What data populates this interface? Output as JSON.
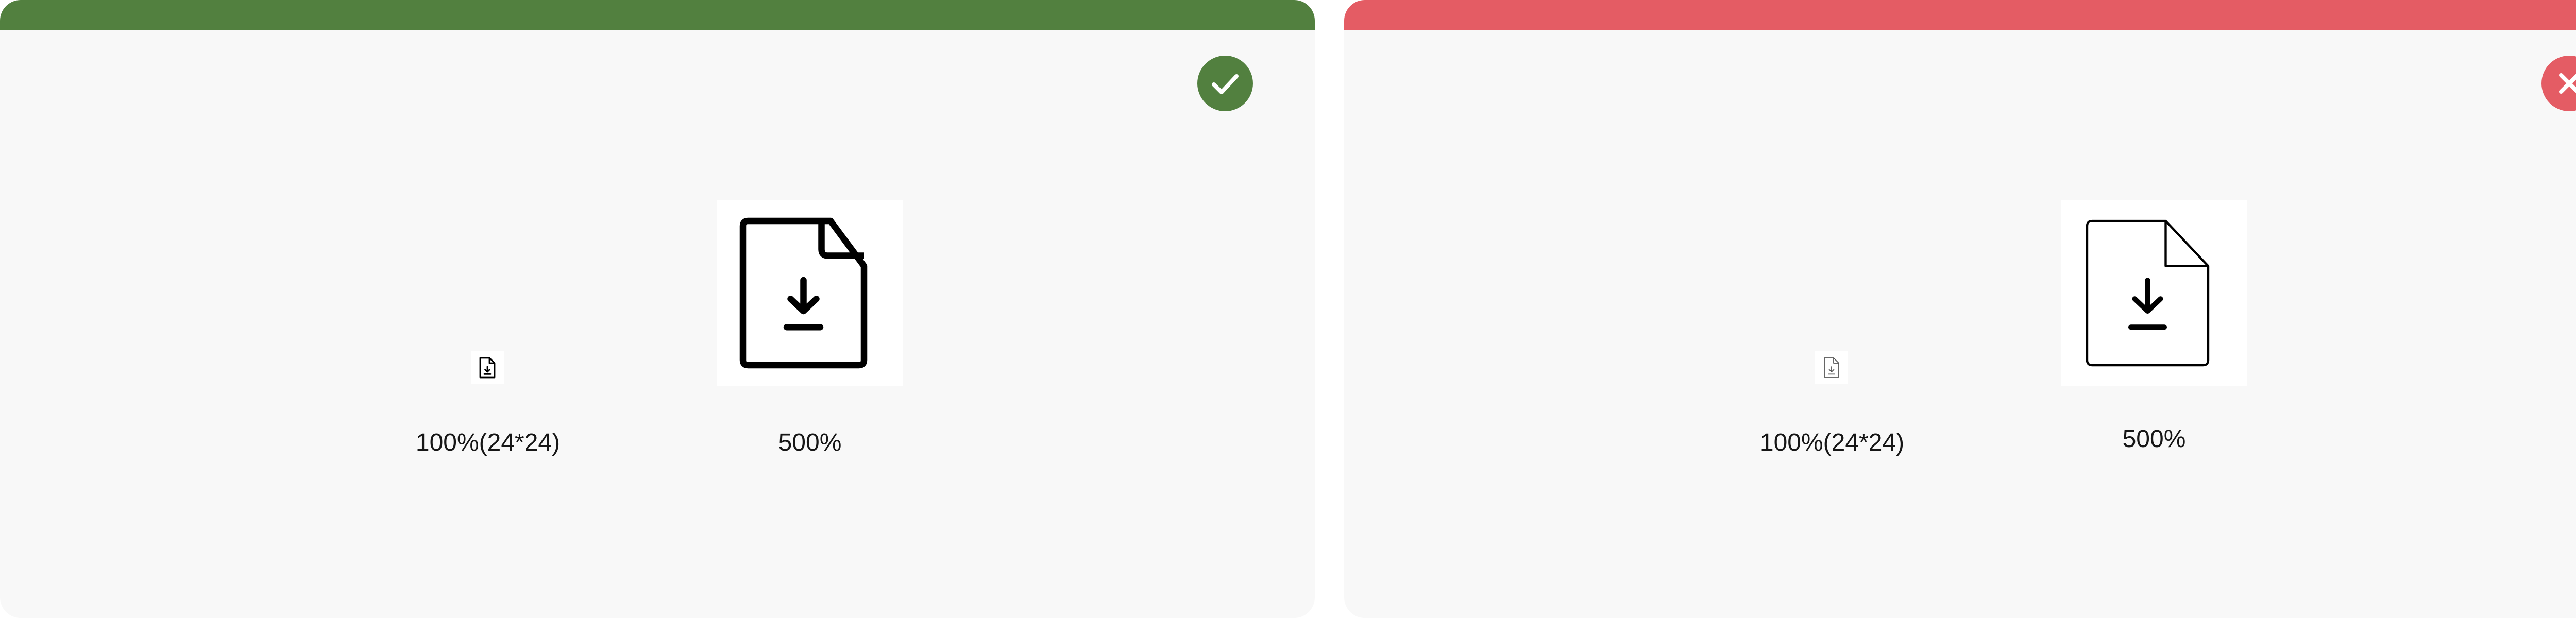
{
  "colors": {
    "do_accent": "#52803f",
    "dont_accent": "#e45c64",
    "panel_bg": "#f8f8f8",
    "icon_bg": "#ffffff",
    "text": "#161616"
  },
  "panels": [
    {
      "kind": "do",
      "status_icon": "checkmark-icon",
      "icon": "document-download-icon",
      "small_label": "100%(24*24)",
      "big_label": "500%"
    },
    {
      "kind": "dont",
      "status_icon": "close-icon",
      "icon": "document-download-icon",
      "small_label": "100%(24*24)",
      "big_label": "500%"
    }
  ]
}
